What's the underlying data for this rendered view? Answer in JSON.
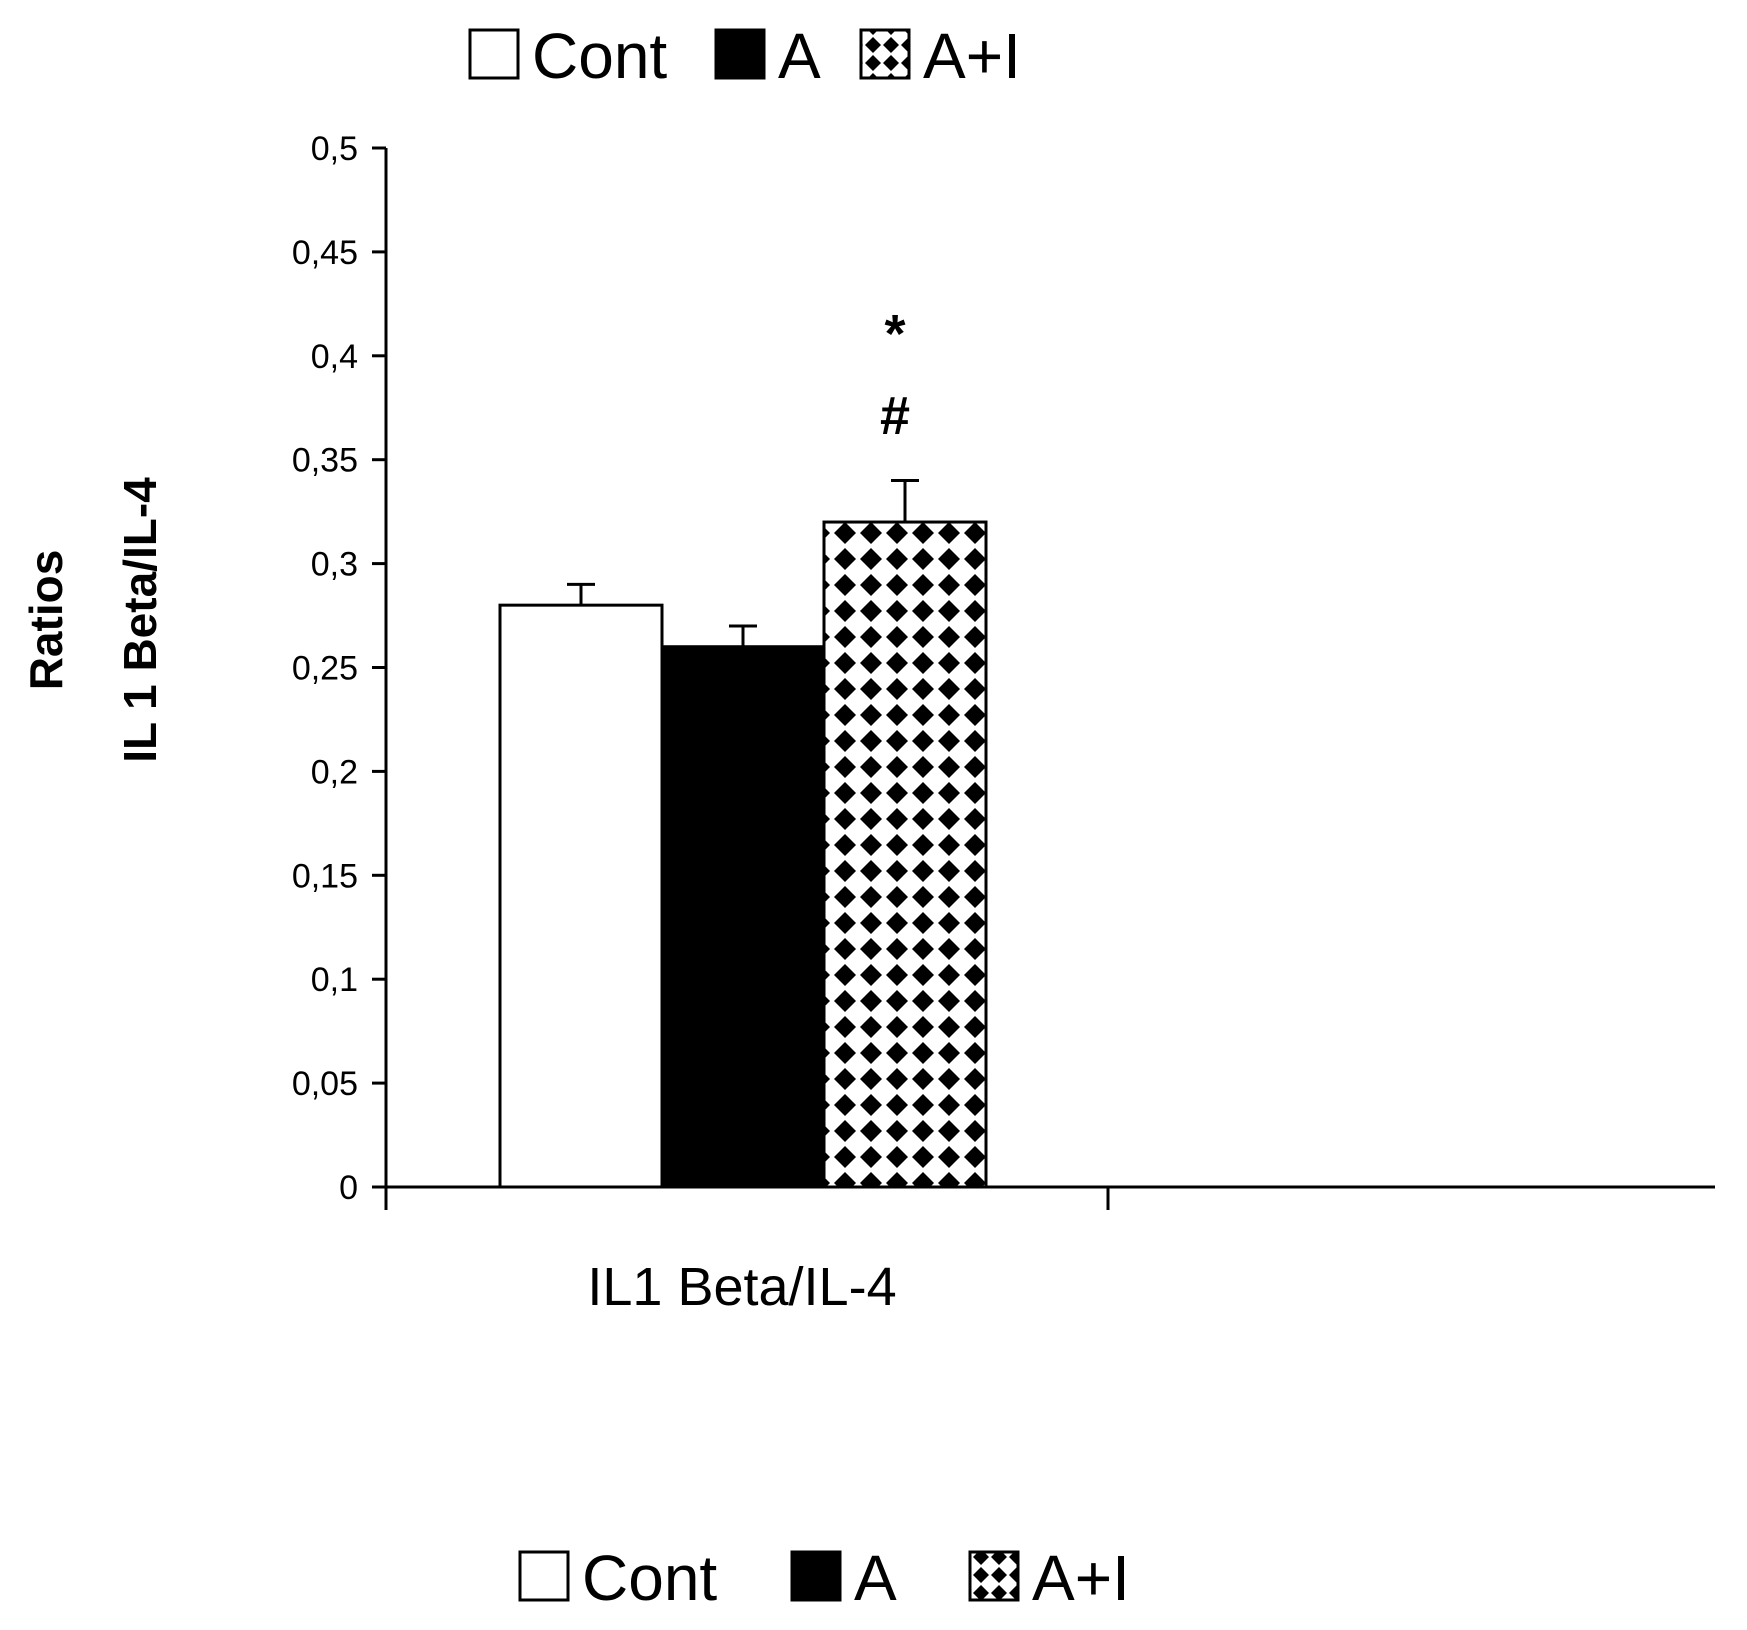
{
  "chart_data": {
    "type": "bar",
    "categories": [
      "IL1 Beta/IL-4"
    ],
    "series": [
      {
        "name": "Cont",
        "values": [
          0.28
        ],
        "error": [
          0.01
        ],
        "fill": "#ffffff",
        "pattern": "none"
      },
      {
        "name": "A",
        "values": [
          0.26
        ],
        "error": [
          0.01
        ],
        "fill": "#000000",
        "pattern": "none"
      },
      {
        "name": "A+I",
        "values": [
          0.32
        ],
        "error": [
          0.02
        ],
        "fill": "#ffffff",
        "pattern": "diamond-checker",
        "annotations": [
          "*",
          "#"
        ]
      }
    ],
    "ylabel": [
      "Ratios",
      "IL 1 Beta/IL-4"
    ],
    "ylim": [
      0,
      0.5
    ],
    "yticks": [
      "0",
      "0,05",
      "0,1",
      "0,15",
      "0,2",
      "0,25",
      "0,3",
      "0,35",
      "0,4",
      "0,45",
      "0,5"
    ],
    "legend_entries": [
      "Cont",
      "A",
      "A+I"
    ],
    "legend_placement": "top and bottom",
    "grid": false
  }
}
